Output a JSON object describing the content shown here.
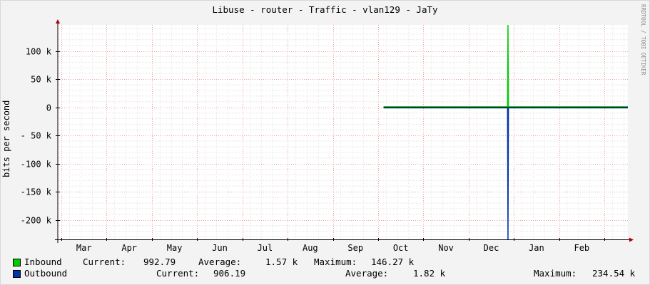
{
  "chart_data": {
    "type": "area",
    "title": "Libuse - router - Traffic - vlan129 - JaTy",
    "ylabel": "bits per second",
    "xlabel": "",
    "side_credit": "RRDTOOL / TOBI OETIKER",
    "x_tick_labels": [
      "Mar",
      "Apr",
      "May",
      "Jun",
      "Jul",
      "Aug",
      "Sep",
      "Oct",
      "Nov",
      "Dec",
      "Jan",
      "Feb"
    ],
    "y_tick_labels": [
      "100 k",
      "50 k",
      "0",
      "- 50 k",
      "-100 k",
      "-150 k",
      "-200 k"
    ],
    "y_ticks": [
      100000,
      50000,
      0,
      -50000,
      -100000,
      -150000,
      -200000
    ],
    "ylim": [
      -234540,
      146270
    ],
    "xlim": [
      0,
      12.6
    ],
    "grid": true,
    "legend_position": "bottom",
    "series": [
      {
        "name": "Inbound",
        "color": "#00cc00",
        "x": [
          7.2,
          9.94,
          9.95,
          9.96,
          12.6
        ],
        "values": [
          990,
          990,
          146270,
          990,
          990
        ]
      },
      {
        "name": "Outbound",
        "color": "#0033aa",
        "x": [
          7.2,
          9.94,
          9.95,
          9.96,
          12.6
        ],
        "values": [
          -900,
          -900,
          -234540,
          -900,
          -900
        ]
      }
    ]
  },
  "legend": {
    "inbound": {
      "name": "Inbound",
      "current_label": "Current:",
      "current": "992.79",
      "average_label": "Average:",
      "average": "1.57 k",
      "maximum_label": "Maximum:",
      "maximum": "146.27 k"
    },
    "outbound": {
      "name": "Outbound",
      "current_label": "Current:",
      "current": "906.19",
      "average_label": "Average:",
      "average": "1.82 k",
      "maximum_label": "Maximum:",
      "maximum": "234.54 k"
    }
  }
}
